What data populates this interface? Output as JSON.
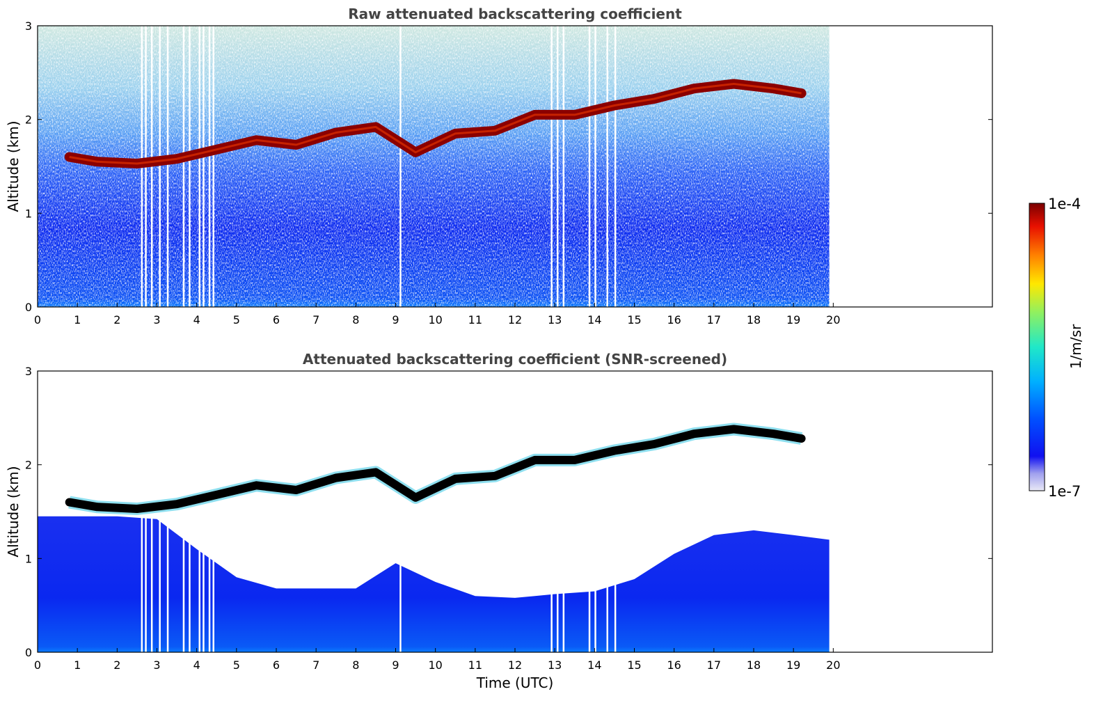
{
  "chart_data": [
    {
      "type": "heatmap",
      "title": "Raw attenuated backscattering coefficient",
      "xlabel": "",
      "ylabel": "Altitude (km)",
      "xlim": [
        0,
        24
      ],
      "ylim": [
        0,
        3
      ],
      "xticks": [
        "0",
        "1",
        "2",
        "3",
        "4",
        "5",
        "6",
        "7",
        "8",
        "9",
        "10",
        "11",
        "12",
        "13",
        "14",
        "15",
        "16",
        "17",
        "18",
        "19",
        "20"
      ],
      "yticks": [
        "0",
        "1",
        "2",
        "3"
      ],
      "data_extent_hours": [
        0,
        19.9
      ],
      "gap_times_utc": [
        2.6,
        2.7,
        2.85,
        3.05,
        3.25,
        3.65,
        3.8,
        4.05,
        4.15,
        4.3,
        4.4,
        9.1,
        12.9,
        13.05,
        13.2,
        13.85,
        14.0,
        14.3,
        14.5
      ],
      "cloud_layer": {
        "times": [
          0.8,
          1.5,
          2.5,
          3.5,
          4.5,
          5.5,
          6.5,
          7.5,
          8.5,
          9.5,
          10.5,
          11.5,
          12.5,
          13.5,
          14.5,
          15.5,
          16.5,
          17.5,
          18.5,
          19.2
        ],
        "altitudes_km": [
          1.6,
          1.55,
          1.53,
          1.58,
          1.68,
          1.78,
          1.73,
          1.86,
          1.92,
          1.65,
          1.85,
          1.88,
          2.05,
          2.05,
          2.15,
          2.22,
          2.33,
          2.38,
          2.33,
          2.28
        ]
      },
      "screened": false
    },
    {
      "type": "heatmap",
      "title": "Attenuated backscattering coefficient (SNR-screened)",
      "xlabel": "Time (UTC)",
      "ylabel": "Altitude (km)",
      "xlim": [
        0,
        24
      ],
      "ylim": [
        0,
        3
      ],
      "xticks": [
        "0",
        "1",
        "2",
        "3",
        "4",
        "5",
        "6",
        "7",
        "8",
        "9",
        "10",
        "11",
        "12",
        "13",
        "14",
        "15",
        "16",
        "17",
        "18",
        "19",
        "20"
      ],
      "yticks": [
        "0",
        "1",
        "2",
        "3"
      ],
      "data_extent_hours": [
        0,
        19.9
      ],
      "screened_top_km": {
        "times": [
          0,
          1,
          2,
          3,
          4,
          5,
          6,
          7,
          8,
          9,
          10,
          11,
          12,
          13,
          14,
          15,
          16,
          17,
          18,
          19,
          19.9
        ],
        "altitudes_km": [
          1.45,
          1.45,
          1.45,
          1.42,
          1.1,
          0.8,
          0.68,
          0.68,
          0.68,
          0.95,
          0.75,
          0.6,
          0.58,
          0.62,
          0.65,
          0.78,
          1.05,
          1.25,
          1.3,
          1.25,
          1.2
        ]
      },
      "screened": true
    }
  ],
  "colorbar": {
    "label": "1/m/sr",
    "max_label": "1e-4",
    "min_label": "1e-7",
    "colormap": "jet"
  }
}
